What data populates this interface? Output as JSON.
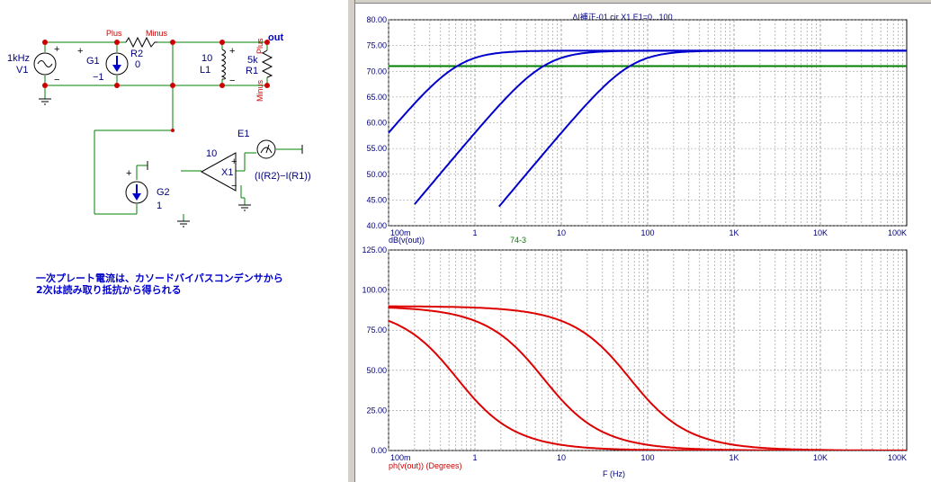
{
  "schematic": {
    "v1": {
      "freq": "1kHz",
      "name": "V1",
      "plus": "+",
      "minus": "−"
    },
    "g1": {
      "name": "G1",
      "value": "−1",
      "node_plus": "Plus",
      "plus": "+"
    },
    "r2": {
      "name": "R2",
      "value": "0",
      "node_minus": "Minus"
    },
    "l1": {
      "value": "10",
      "name": "L1",
      "plus": "+",
      "minus": "−"
    },
    "r1": {
      "value": "5k",
      "name": "R1",
      "node_plus": "Plus",
      "node_minus": "Minus",
      "out": "out"
    },
    "g2": {
      "name": "G2",
      "value": "1",
      "plus": "+"
    },
    "x1": {
      "gain": "10",
      "name": "X1",
      "plus": "+",
      "minus": "−"
    },
    "e1": {
      "name": "E1",
      "expr": "(I(R2)−I(R1))"
    },
    "note_line1": "一次プレート電流は、カソードバイパスコンデンサから",
    "note_line2": "2次は読み取り抵抗から得られる"
  },
  "plot": {
    "title": "Δ|補正-01.cir X1 E1=0...100",
    "top_ylabel": "dB(v(out))",
    "top_annotation": "74-3",
    "bottom_ylabel": "ph(v(out)) (Degrees)",
    "xlabel": "F (Hz)"
  },
  "chart_data": [
    {
      "type": "line",
      "title": "Δ|補正-01.cir X1 E1=0...100",
      "ylabel": "dB(v(out))",
      "xlabel": "",
      "xscale": "log",
      "xlim": [
        0.1,
        100000
      ],
      "ylim": [
        40,
        80
      ],
      "x_ticks": [
        "100m",
        "1",
        "10",
        "100",
        "1K",
        "10K",
        "100K"
      ],
      "y_ticks": [
        "40.00",
        "45.00",
        "50.00",
        "55.00",
        "60.00",
        "65.00",
        "70.00",
        "75.00",
        "80.00"
      ],
      "color": "#0000cc",
      "reference_line": {
        "y": 71,
        "color": "#008000"
      },
      "series": [
        {
          "corner_hz": 0.62,
          "x": [
            0.1,
            0.2,
            0.5,
            1,
            2,
            5,
            10,
            100,
            1000,
            100000
          ],
          "y": [
            56.2,
            61.7,
            68.0,
            71.2,
            73.1,
            73.8,
            74.0,
            74.0,
            74.0,
            74.0
          ]
        },
        {
          "corner_hz": 6.2,
          "x": [
            0.2,
            0.5,
            1,
            2,
            5,
            10,
            20,
            50,
            100,
            1000,
            100000
          ],
          "y": [
            40.2,
            47.9,
            53.9,
            59.8,
            66.8,
            70.7,
            72.8,
            73.8,
            74.0,
            74.0,
            74.0
          ]
        },
        {
          "corner_hz": 62,
          "x": [
            1.9,
            5,
            10,
            20,
            50,
            100,
            200,
            500,
            1000,
            10000,
            100000
          ],
          "y": [
            40.0,
            47.6,
            53.8,
            59.9,
            67.0,
            70.8,
            72.9,
            73.8,
            74.0,
            74.0,
            74.0
          ]
        }
      ]
    },
    {
      "type": "line",
      "ylabel": "ph(v(out)) (Degrees)",
      "xlabel": "F (Hz)",
      "xscale": "log",
      "xlim": [
        0.1,
        100000
      ],
      "ylim": [
        0,
        125
      ],
      "x_ticks": [
        "100m",
        "1",
        "10",
        "100",
        "1K",
        "10K",
        "100K"
      ],
      "y_ticks": [
        "0.00",
        "25.00",
        "50.00",
        "75.00",
        "100.00",
        "125.00"
      ],
      "color": "#dd0000",
      "series": [
        {
          "corner_hz": 0.62,
          "x": [
            0.1,
            0.2,
            0.5,
            1,
            2,
            5,
            10,
            100,
            1000
          ],
          "y": [
            81,
            72,
            51,
            32,
            17,
            7,
            3.5,
            0.4,
            0
          ]
        },
        {
          "corner_hz": 6.2,
          "x": [
            0.1,
            1,
            2,
            5,
            10,
            20,
            50,
            100,
            1000,
            10000
          ],
          "y": [
            89,
            81,
            72,
            51,
            32,
            17,
            7,
            3.5,
            0.4,
            0
          ]
        },
        {
          "corner_hz": 62,
          "x": [
            0.1,
            1,
            10,
            20,
            50,
            100,
            200,
            500,
            1000,
            10000,
            100000
          ],
          "y": [
            89.9,
            89,
            81,
            72,
            51,
            32,
            17,
            7,
            3.5,
            0.4,
            0
          ]
        }
      ]
    }
  ]
}
